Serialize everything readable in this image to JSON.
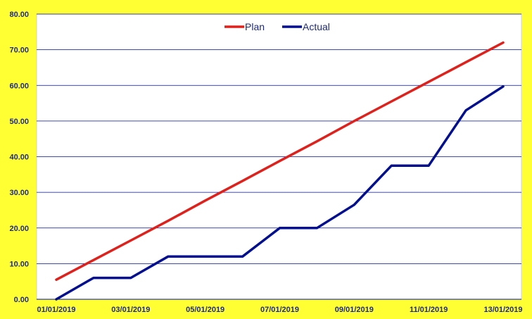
{
  "chart_data": {
    "type": "line",
    "title": "",
    "xlabel": "",
    "ylabel": "",
    "x": [
      "01/01/2019",
      "02/01/2019",
      "03/01/2019",
      "04/01/2019",
      "05/01/2019",
      "06/01/2019",
      "07/01/2019",
      "08/01/2019",
      "09/01/2019",
      "10/01/2019",
      "11/01/2019",
      "12/01/2019",
      "13/01/2019"
    ],
    "x_tick_labels": [
      "01/01/2019",
      "03/01/2019",
      "05/01/2019",
      "07/01/2019",
      "09/01/2019",
      "11/01/2019",
      "13/01/2019"
    ],
    "ylim": [
      0,
      80
    ],
    "y_ticks": [
      "0.00",
      "10.00",
      "20.00",
      "30.00",
      "40.00",
      "50.00",
      "60.00",
      "70.00",
      "80.00"
    ],
    "grid": true,
    "legend_position": "top-center",
    "series": [
      {
        "name": "Plan",
        "color": "#e0201b",
        "values": [
          5.5,
          11.0,
          16.5,
          22.0,
          27.7,
          33.2,
          38.8,
          44.3,
          50.0,
          55.5,
          61.0,
          66.5,
          72.0
        ]
      },
      {
        "name": "Actual",
        "color": "#000f8f",
        "values": [
          0.0,
          6.0,
          6.0,
          12.0,
          12.0,
          12.0,
          20.0,
          20.0,
          26.5,
          37.5,
          37.5,
          53.0,
          59.7
        ]
      }
    ]
  }
}
